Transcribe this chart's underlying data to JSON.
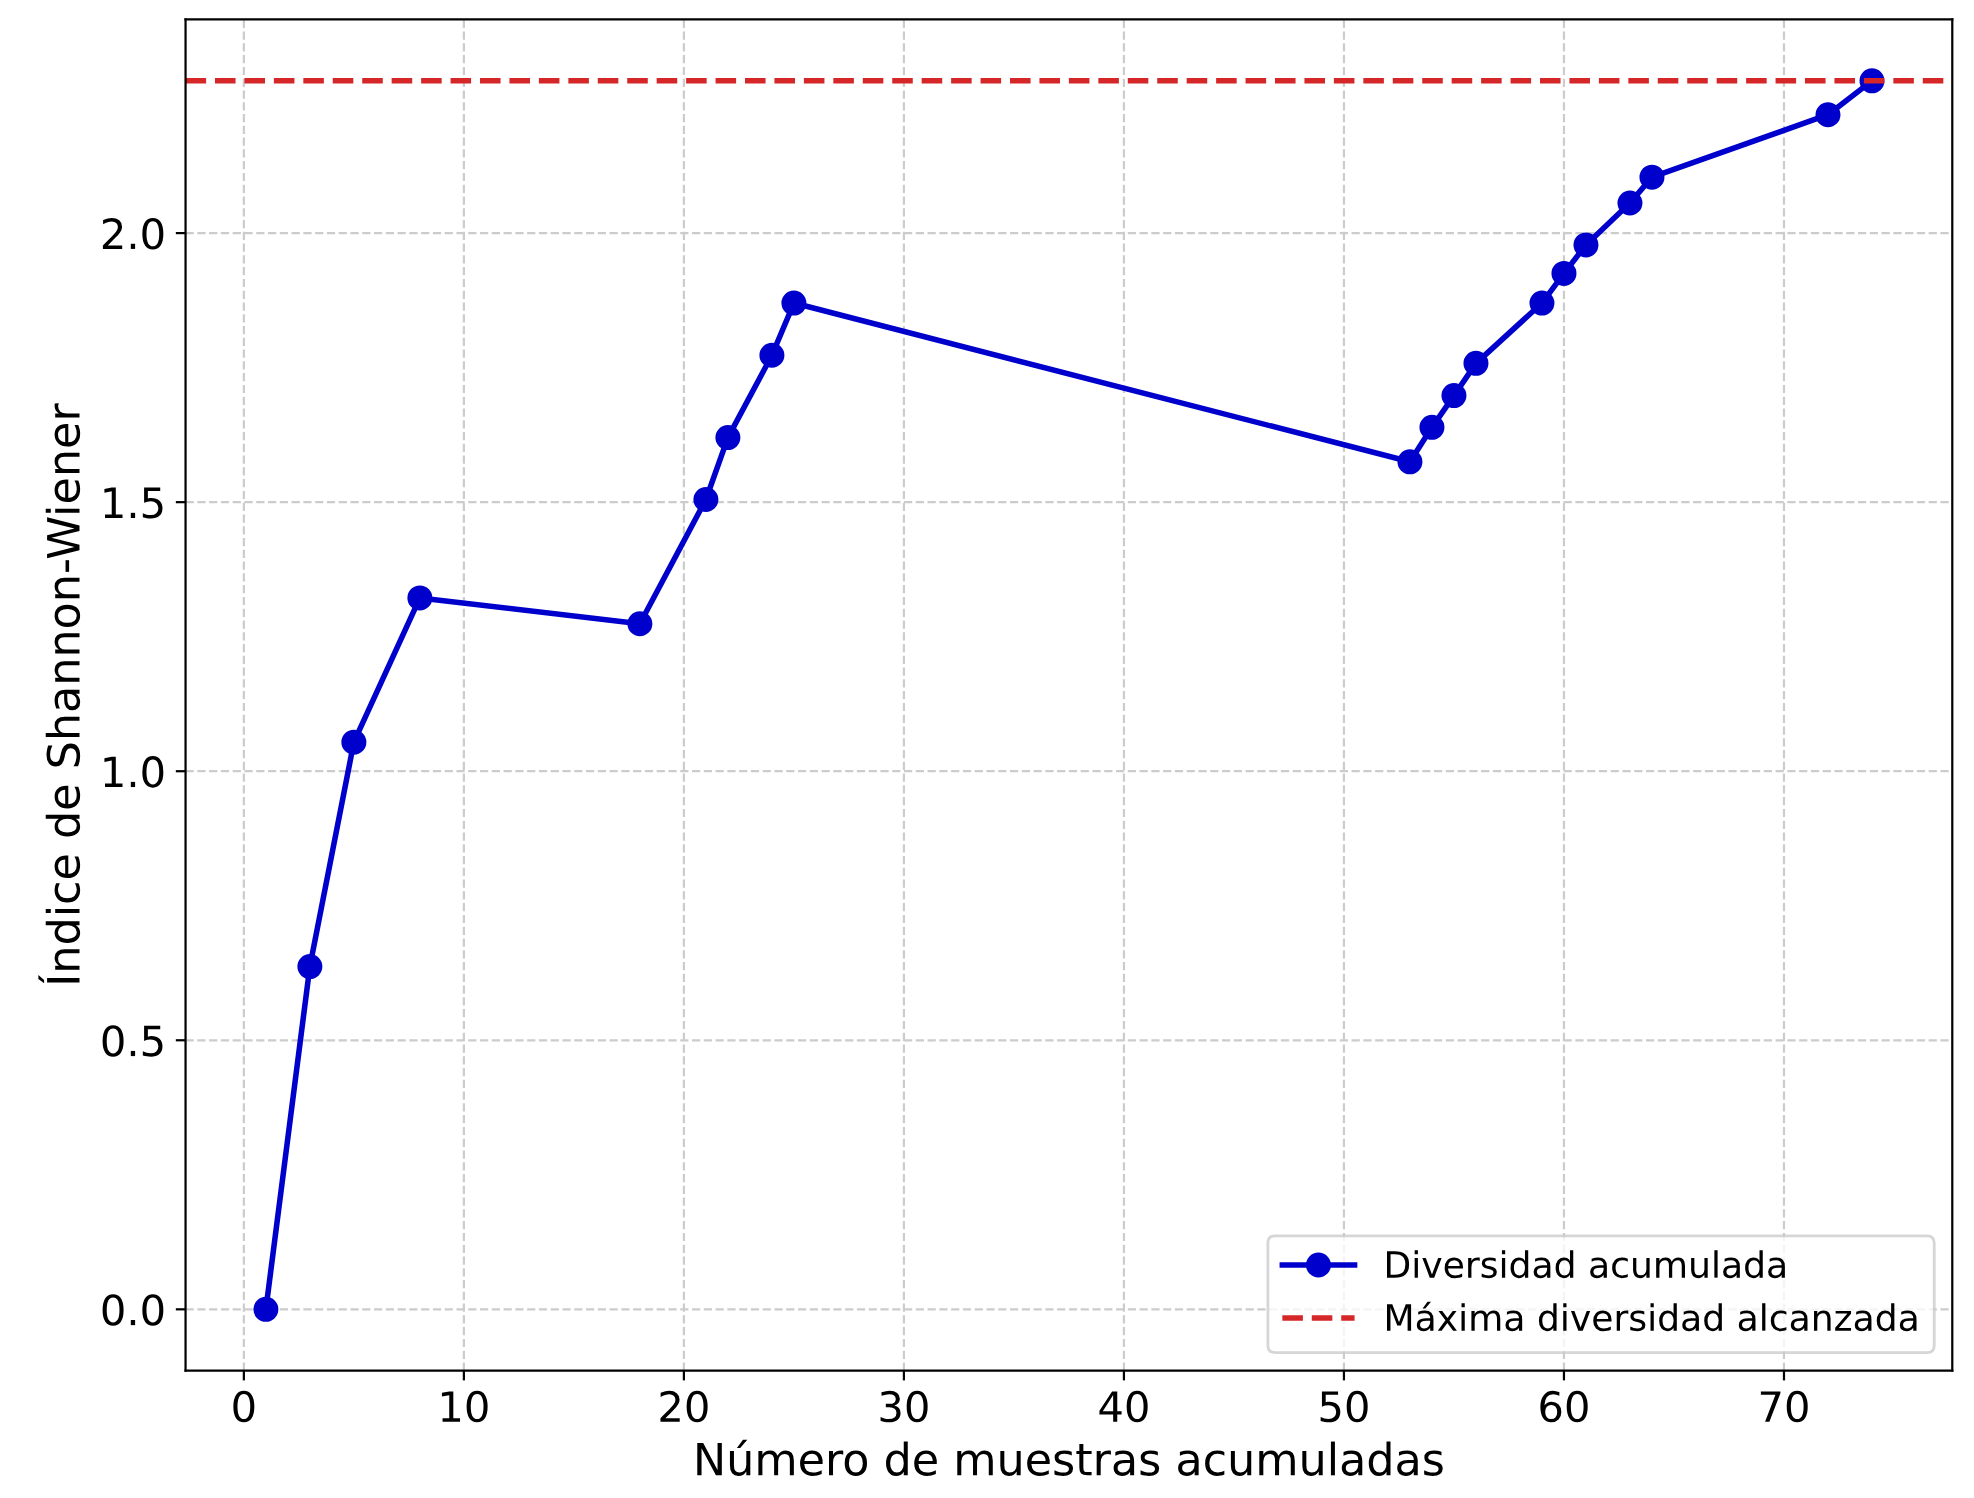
{
  "chart_data": {
    "type": "line",
    "xlabel": "Número de muestras acumuladas",
    "ylabel": "Índice de Shannon-Wiener",
    "x": [
      1,
      3,
      5,
      8,
      18,
      21,
      22,
      24,
      25,
      53,
      54,
      55,
      56,
      59,
      60,
      61,
      63,
      64,
      72,
      74
    ],
    "series": [
      {
        "name": "Diversidad acumulada",
        "color": "#0000cc",
        "values": [
          0.0,
          0.637,
          1.054,
          1.322,
          1.274,
          1.505,
          1.62,
          1.773,
          1.87,
          1.575,
          1.639,
          1.698,
          1.758,
          1.87,
          1.925,
          1.978,
          2.056,
          2.104,
          2.22,
          2.283
        ]
      }
    ],
    "ref_lines": [
      {
        "axis": "y",
        "value": 2.283,
        "label": "Máxima diversidad alcanzada",
        "color": "#d62728",
        "line_style": "dashed"
      }
    ],
    "xlim": [
      -2.65,
      77.65
    ],
    "ylim": [
      -0.114,
      2.397
    ],
    "xticks": [
      0,
      10,
      20,
      30,
      40,
      50,
      60,
      70
    ],
    "yticks": [
      {
        "value": 0,
        "label": "0.0"
      },
      0.5,
      {
        "value": 1,
        "label": "1.0"
      },
      1.5,
      {
        "value": 2,
        "label": "2.0"
      }
    ],
    "grid": true,
    "legend": "bottom right",
    "marker": "circle",
    "line_style": "solid"
  }
}
